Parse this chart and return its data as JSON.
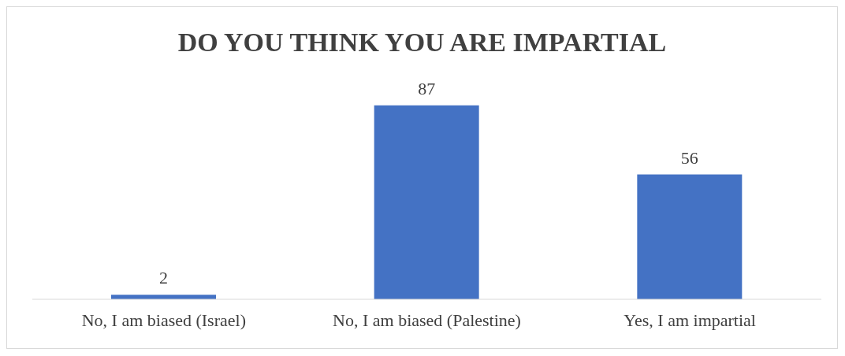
{
  "chart_data": {
    "type": "bar",
    "title": "DO YOU THINK YOU ARE IMPARTIAL",
    "categories": [
      "No, I am biased (Israel)",
      "No, I am biased (Palestine)",
      "Yes, I am impartial"
    ],
    "values": [
      2,
      87,
      56
    ],
    "color": "#4472c4",
    "data_labels": true,
    "grid": false,
    "legend": false
  }
}
